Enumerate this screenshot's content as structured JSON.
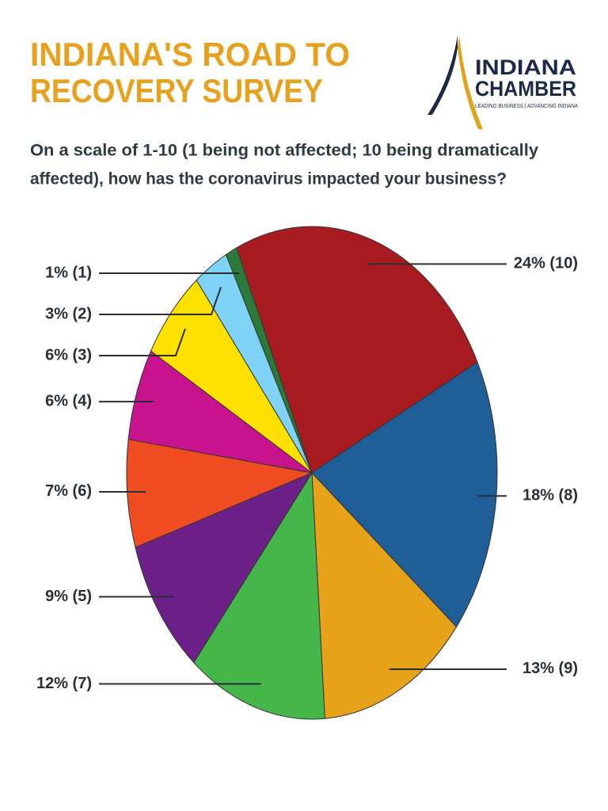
{
  "chart_data": {
    "type": "pie",
    "title": [
      "INDIANA'S ROAD TO",
      "RECOVERY SURVEY"
    ],
    "subtitle": [
      "On a scale of 1-10 (1 being not affected; 10 being dramatically",
      "affected), how has the coronavirus impacted your business?"
    ],
    "logo": {
      "name": [
        "INDIANA",
        "CHAMBER"
      ],
      "tagline": "LEADING BUSINESS | ADVANCING INDIANA"
    },
    "values": [
      24,
      18,
      13,
      12,
      9,
      7,
      6,
      6,
      3,
      1
    ],
    "value_labels": [
      "24% (10)",
      "18% (8)",
      "13% (9)",
      "12% (7)",
      "9% (5)",
      "7% (6)",
      "6% (4)",
      "6% (3)",
      "3% (2)",
      "1% (1)"
    ],
    "colors": [
      "#a81b21",
      "#1f5e96",
      "#e6a218",
      "#45b649",
      "#6e2089",
      "#ef4c22",
      "#c8138f",
      "#ffe100",
      "#7fd3f6",
      "#2b7a39"
    ]
  }
}
